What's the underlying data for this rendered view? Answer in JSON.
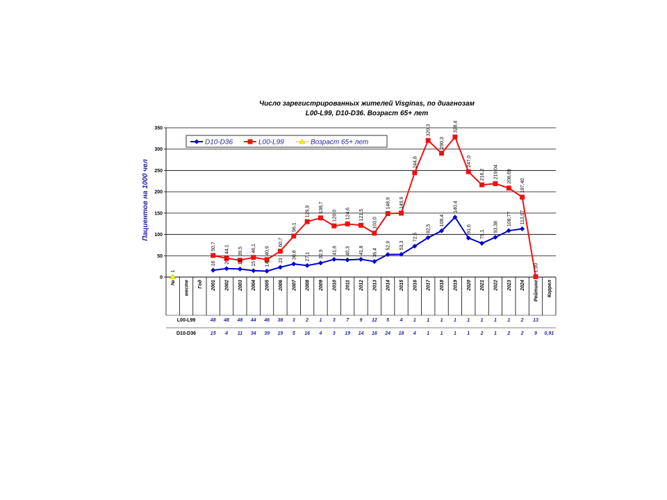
{
  "chart_data": {
    "type": "line",
    "title_line1": "Число зарегистрированных жителей Visginas, по диагнозам",
    "title_line2": "L00-L99,  D10-D36. Возраст 65+ лет",
    "ylabel": "Пациентов на 1000 чел",
    "ylim": [
      0,
      350
    ],
    "yticks": [
      0,
      50,
      100,
      150,
      200,
      250,
      300,
      350
    ],
    "grid": true,
    "legend_position": "top-left",
    "categories": [
      "№",
      "месте",
      "Год",
      "2001",
      "2002",
      "2003",
      "2004",
      "2005",
      "2006",
      "2007",
      "2008",
      "2009",
      "2010",
      "2011",
      "2012",
      "2013",
      "2014",
      "2015",
      "2016",
      "2017",
      "2018",
      "2019",
      "2020",
      "2021",
      "2022",
      "2023",
      "2024",
      "Рейтинг",
      "Коррел"
    ],
    "series": [
      {
        "name": "D10-D36",
        "color": "#0000cc",
        "marker": "diamond",
        "values": [
          null,
          null,
          null,
          16,
          20,
          19,
          15,
          14,
          23,
          30.8,
          27.1,
          32.9,
          41.6,
          40.3,
          41.8,
          36.4,
          52.9,
          53.3,
          72.5,
          92.5,
          108.4,
          140.4,
          91.6,
          79.1,
          93.38,
          108.77,
          113.07,
          null,
          null
        ],
        "labels": [
          "",
          "",
          "",
          "16",
          "20",
          "19",
          "15",
          "14",
          "23",
          "30,8",
          "27,1",
          "32,9",
          "41,6",
          "40,3",
          "41,8",
          "36,4",
          "52,9",
          "53,3",
          "72,5",
          "92,5",
          "108,4",
          "140,4",
          "91,6",
          "79,1",
          "93,38",
          "108,77",
          "113,07",
          "",
          ""
        ]
      },
      {
        "name": "L00-L99",
        "color": "#ee1111",
        "marker": "square",
        "values": [
          null,
          null,
          null,
          50.7,
          44.1,
          39.5,
          46.1,
          40.9,
          60.7,
          96.1,
          129.9,
          138.7,
          120.0,
          124.6,
          121.5,
          103.0,
          148.9,
          149.9,
          244.8,
          320.3,
          290.3,
          328.4,
          247.0,
          216.2,
          219.04,
          208.69,
          187.4,
          1.0,
          null
        ],
        "labels": [
          "",
          "",
          "",
          "50,7",
          "44,1",
          "39,5",
          "46,1",
          "40,9",
          "60,7",
          "96,1",
          "129,9",
          "138,7",
          "120,0",
          "124,6",
          "121,5",
          "103,0",
          "148,9",
          "149,9",
          "244,8",
          "320,3",
          "290,3",
          "328,4",
          "247,0",
          "216,2",
          "219,04",
          "208,69",
          "187,40",
          "1,00",
          ""
        ]
      },
      {
        "name": "Возраст 65+ лет",
        "color": "#ffee00",
        "marker": "triangle",
        "values": [
          1,
          null,
          null,
          null,
          null,
          null,
          null,
          null,
          null,
          null,
          null,
          null,
          null,
          null,
          null,
          null,
          null,
          null,
          null,
          null,
          null,
          null,
          null,
          null,
          null,
          null,
          null,
          null,
          null
        ],
        "labels": [
          "1",
          "",
          "",
          "",
          "",
          "",
          "",
          "",
          "",
          "",
          "",
          "",
          "",
          "",
          "",
          "",
          "",
          "",
          "",
          "",
          "",
          "",
          "",
          "",
          "",
          "",
          "",
          "",
          ""
        ]
      }
    ],
    "rank_rows": [
      {
        "label": "L00-L99",
        "values": [
          "",
          "",
          "",
          "48",
          "48",
          "48",
          "44",
          "46",
          "38",
          "3",
          "2",
          "1",
          "3",
          "7",
          "9",
          "12",
          "5",
          "4",
          "1",
          "1",
          "1",
          "1",
          "1",
          "1",
          "1",
          "1",
          "2",
          "13",
          ""
        ]
      },
      {
        "label": "D10-D36",
        "values": [
          "",
          "",
          "",
          "15",
          "4",
          "11",
          "34",
          "39",
          "19",
          "5",
          "16",
          "4",
          "3",
          "19",
          "14",
          "16",
          "24",
          "18",
          "4",
          "1",
          "1",
          "1",
          "1",
          "2",
          "1",
          "2",
          "2",
          "9",
          "0,91"
        ]
      }
    ]
  }
}
